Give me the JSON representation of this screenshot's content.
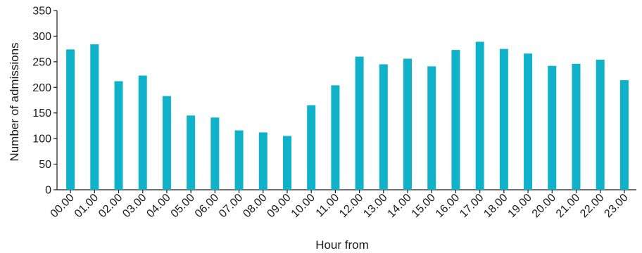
{
  "chart_data": {
    "type": "bar",
    "xlabel": "Hour from",
    "ylabel": "Number of admissions",
    "ylim": [
      0,
      350
    ],
    "yticks": [
      0,
      50,
      100,
      150,
      200,
      250,
      300,
      350
    ],
    "categories": [
      "00.00",
      "01.00",
      "02.00",
      "03.00",
      "04.00",
      "05.00",
      "06.00",
      "07.00",
      "08.00",
      "09.00",
      "10.00",
      "11.00",
      "12.00",
      "13.00",
      "14.00",
      "15.00",
      "16.00",
      "17.00",
      "18.00",
      "19.00",
      "20.00",
      "21.00",
      "22.00",
      "23.00"
    ],
    "values": [
      274,
      284,
      212,
      223,
      183,
      145,
      141,
      116,
      112,
      105,
      165,
      204,
      260,
      245,
      256,
      241,
      273,
      289,
      275,
      266,
      242,
      246,
      254,
      214
    ],
    "bar_color": "#0fb2c9",
    "grid": false,
    "legend": "none"
  }
}
